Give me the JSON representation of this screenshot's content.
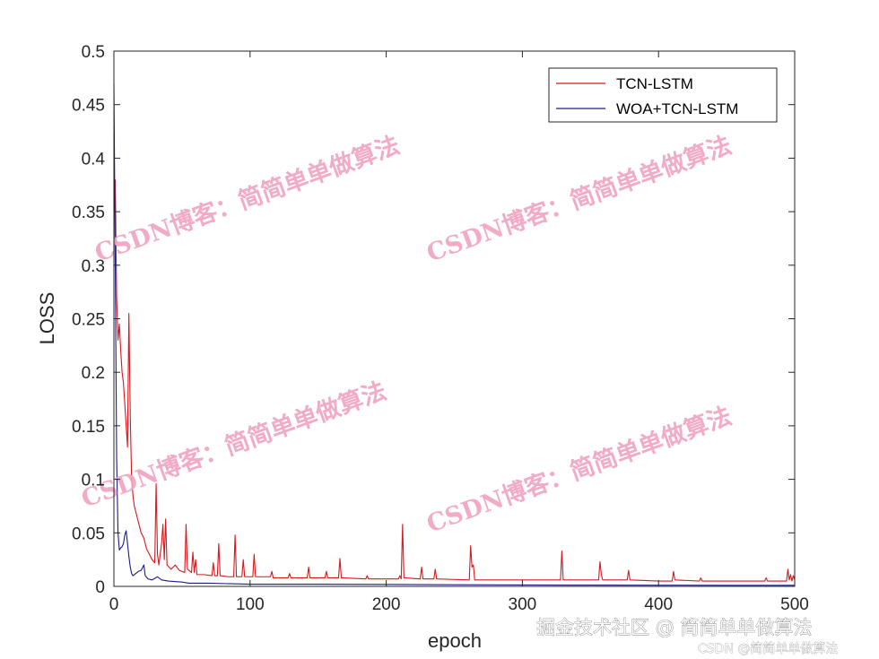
{
  "chart_data": {
    "type": "line",
    "title": "",
    "xlabel": "epoch",
    "ylabel": "LOSS",
    "xlim": [
      0,
      500
    ],
    "ylim": [
      0,
      0.5
    ],
    "xticks": [
      0,
      100,
      200,
      300,
      400,
      500
    ],
    "yticks": [
      0,
      0.05,
      0.1,
      0.15,
      0.2,
      0.25,
      0.3,
      0.35,
      0.4,
      0.45,
      0.5
    ],
    "grid": false,
    "legend_position": "top-right",
    "series": [
      {
        "name": "TCN-LSTM",
        "color": "#d7181e",
        "points": [
          [
            1,
            0.38
          ],
          [
            2,
            0.27
          ],
          [
            3,
            0.23
          ],
          [
            4,
            0.245
          ],
          [
            5,
            0.22
          ],
          [
            6,
            0.2
          ],
          [
            7,
            0.19
          ],
          [
            8,
            0.17
          ],
          [
            9,
            0.15
          ],
          [
            10,
            0.13
          ],
          [
            11,
            0.255
          ],
          [
            12,
            0.16
          ],
          [
            13,
            0.1
          ],
          [
            14,
            0.085
          ],
          [
            15,
            0.075
          ],
          [
            16,
            0.07
          ],
          [
            18,
            0.06
          ],
          [
            20,
            0.05
          ],
          [
            22,
            0.045
          ],
          [
            24,
            0.035
          ],
          [
            26,
            0.03
          ],
          [
            28,
            0.025
          ],
          [
            30,
            0.022
          ],
          [
            31,
            0.096
          ],
          [
            32,
            0.03
          ],
          [
            33,
            0.02
          ],
          [
            35,
            0.04
          ],
          [
            36,
            0.058
          ],
          [
            37,
            0.025
          ],
          [
            38,
            0.063
          ],
          [
            39,
            0.02
          ],
          [
            42,
            0.016
          ],
          [
            45,
            0.02
          ],
          [
            48,
            0.015
          ],
          [
            52,
            0.013
          ],
          [
            53,
            0.058
          ],
          [
            54,
            0.016
          ],
          [
            57,
            0.013
          ],
          [
            58,
            0.032
          ],
          [
            59,
            0.013
          ],
          [
            60,
            0.025
          ],
          [
            61,
            0.011
          ],
          [
            66,
            0.011
          ],
          [
            72,
            0.01
          ],
          [
            73,
            0.022
          ],
          [
            74,
            0.01
          ],
          [
            76,
            0.01
          ],
          [
            77,
            0.04
          ],
          [
            78,
            0.01
          ],
          [
            84,
            0.009
          ],
          [
            88,
            0.009
          ],
          [
            89,
            0.048
          ],
          [
            90,
            0.009
          ],
          [
            94,
            0.009
          ],
          [
            95,
            0.025
          ],
          [
            96,
            0.009
          ],
          [
            102,
            0.009
          ],
          [
            103,
            0.03
          ],
          [
            104,
            0.009
          ],
          [
            115,
            0.009
          ],
          [
            116,
            0.014
          ],
          [
            117,
            0.008
          ],
          [
            128,
            0.008
          ],
          [
            129,
            0.012
          ],
          [
            130,
            0.008
          ],
          [
            142,
            0.008
          ],
          [
            143,
            0.018
          ],
          [
            144,
            0.008
          ],
          [
            155,
            0.008
          ],
          [
            156,
            0.014
          ],
          [
            157,
            0.008
          ],
          [
            165,
            0.008
          ],
          [
            166,
            0.026
          ],
          [
            167,
            0.008
          ],
          [
            185,
            0.007
          ],
          [
            186,
            0.01
          ],
          [
            187,
            0.007
          ],
          [
            209,
            0.007
          ],
          [
            210,
            0.01
          ],
          [
            211,
            0.007
          ],
          [
            212,
            0.058
          ],
          [
            213,
            0.008
          ],
          [
            225,
            0.007
          ],
          [
            226,
            0.018
          ],
          [
            227,
            0.007
          ],
          [
            235,
            0.007
          ],
          [
            236,
            0.016
          ],
          [
            237,
            0.007
          ],
          [
            261,
            0.006
          ],
          [
            262,
            0.038
          ],
          [
            263,
            0.018
          ],
          [
            264,
            0.02
          ],
          [
            265,
            0.006
          ],
          [
            300,
            0.006
          ],
          [
            328,
            0.006
          ],
          [
            329,
            0.033
          ],
          [
            330,
            0.006
          ],
          [
            356,
            0.006
          ],
          [
            357,
            0.023
          ],
          [
            358,
            0.011
          ],
          [
            359,
            0.006
          ],
          [
            377,
            0.006
          ],
          [
            378,
            0.015
          ],
          [
            379,
            0.006
          ],
          [
            400,
            0.005
          ],
          [
            410,
            0.005
          ],
          [
            411,
            0.014
          ],
          [
            412,
            0.006
          ],
          [
            430,
            0.005
          ],
          [
            431,
            0.008
          ],
          [
            432,
            0.005
          ],
          [
            450,
            0.005
          ],
          [
            470,
            0.005
          ],
          [
            478,
            0.005
          ],
          [
            479,
            0.008
          ],
          [
            480,
            0.005
          ],
          [
            494,
            0.005
          ],
          [
            495,
            0.016
          ],
          [
            496,
            0.006
          ],
          [
            497,
            0.011
          ],
          [
            498,
            0.005
          ],
          [
            499,
            0.01
          ],
          [
            500,
            0.006
          ]
        ]
      },
      {
        "name": "WOA+TCN-LSTM",
        "color": "#1c1c8a",
        "points": [
          [
            0,
            0.47
          ],
          [
            1,
            0.3
          ],
          [
            2,
            0.12
          ],
          [
            3,
            0.05
          ],
          [
            4,
            0.034
          ],
          [
            5,
            0.036
          ],
          [
            6,
            0.037
          ],
          [
            7,
            0.04
          ],
          [
            8,
            0.048
          ],
          [
            9,
            0.052
          ],
          [
            10,
            0.04
          ],
          [
            11,
            0.028
          ],
          [
            12,
            0.018
          ],
          [
            13,
            0.012
          ],
          [
            14,
            0.01
          ],
          [
            16,
            0.012
          ],
          [
            18,
            0.014
          ],
          [
            20,
            0.015
          ],
          [
            22,
            0.02
          ],
          [
            23,
            0.01
          ],
          [
            25,
            0.007
          ],
          [
            28,
            0.006
          ],
          [
            32,
            0.009
          ],
          [
            35,
            0.006
          ],
          [
            40,
            0.005
          ],
          [
            50,
            0.004
          ],
          [
            55,
            0.003
          ],
          [
            70,
            0.003
          ],
          [
            100,
            0.002
          ],
          [
            150,
            0.002
          ],
          [
            200,
            0.0018
          ],
          [
            250,
            0.0015
          ],
          [
            300,
            0.0013
          ],
          [
            350,
            0.0012
          ],
          [
            400,
            0.0011
          ],
          [
            450,
            0.001
          ],
          [
            500,
            0.001
          ]
        ]
      }
    ]
  },
  "watermarks": {
    "chart_text": "CSDN博客：简简单单做算法",
    "corner_main": "掘金技术社区 @ 简简单单做算法",
    "corner_sub": "CSDN @简简单单做算法"
  }
}
